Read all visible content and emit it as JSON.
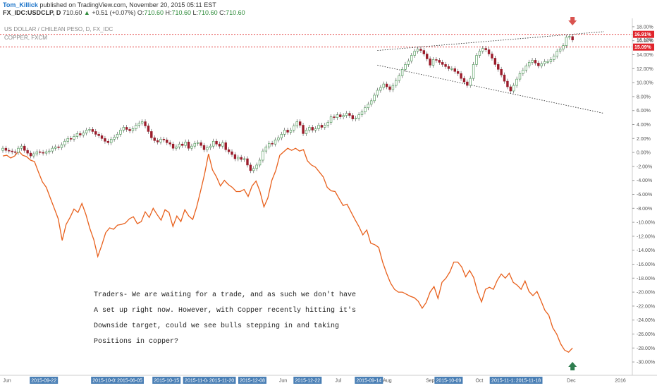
{
  "header": {
    "user": "Tom_Killick",
    "published": "published on TradingView.com, November 20, 2015 05:11 EST",
    "symbol": "FX_IDC:USDCLP, D",
    "last": "710.60",
    "change_arrow": "up-arrow-icon",
    "change": "+0.51 (+0.07%)",
    "o_label": "O:",
    "o": "710.60",
    "h_label": "H:",
    "h": "710.60",
    "l_label": "L:",
    "l": "710.60",
    "c_label": "C:",
    "c": "710.60"
  },
  "legend": {
    "series1": "US DOLLAR / CHILEAN PESO, D, FX_IDC",
    "series2": "COPPER, FXCM"
  },
  "note": {
    "lines": [
      "Traders- We are waiting for a trade, and as such we don't have",
      "A set up right now. However, with Copper recently hitting it's",
      "Downside target, could we see bulls stepping in and taking",
      "Positions in copper?"
    ]
  },
  "colors": {
    "up_candle": "#3f8f4a",
    "down_candle": "#9b1c2b",
    "copper_line": "#e8601c",
    "level_line": "#e03030",
    "badge_red": "#e0242b",
    "arrow_down": "#d9534f",
    "arrow_up": "#2e7d4f",
    "date_box": "#4a7fb5"
  },
  "chart_data": {
    "type": "line",
    "scale": "percent",
    "ylim": [
      -31,
      19
    ],
    "y_ticks": [
      "18.00%",
      "16.00%",
      "14.00%",
      "12.00%",
      "10.00%",
      "8.00%",
      "6.00%",
      "4.00%",
      "2.00%",
      "0.00%",
      "-2.00%",
      "-4.00%",
      "-6.00%",
      "-8.00%",
      "-10.00%",
      "-12.00%",
      "-14.00%",
      "-16.00%",
      "-18.00%",
      "-20.00%",
      "-22.00%",
      "-24.00%",
      "-26.00%",
      "-28.00%",
      "-30.00%"
    ],
    "y_tick_values": [
      18,
      16,
      14,
      12,
      10,
      8,
      6,
      4,
      2,
      0,
      -2,
      -4,
      -6,
      -8,
      -10,
      -12,
      -14,
      -16,
      -18,
      -20,
      -22,
      -24,
      -26,
      -28,
      -30
    ],
    "x_labels": [
      {
        "text": "Jun",
        "pos": 0.0,
        "box": false
      },
      {
        "text": "2015-09-22",
        "pos": 0.06,
        "box": true
      },
      {
        "text": "2015-10-05",
        "pos": 0.16,
        "box": true
      },
      {
        "text": "2015-06-05",
        "pos": 0.2,
        "box": true
      },
      {
        "text": "2015-10-15",
        "pos": 0.26,
        "box": true
      },
      {
        "text": "2015-11-04",
        "pos": 0.31,
        "box": true
      },
      {
        "text": "2015-11-20",
        "pos": 0.35,
        "box": true
      },
      {
        "text": "2015-12-08",
        "pos": 0.4,
        "box": true
      },
      {
        "text": "Jun",
        "pos": 0.45,
        "box": false
      },
      {
        "text": "2015-12-22",
        "pos": 0.49,
        "box": true
      },
      {
        "text": "Jul",
        "pos": 0.54,
        "box": false
      },
      {
        "text": "2015-09-14",
        "pos": 0.59,
        "box": true
      },
      {
        "text": "Aug",
        "pos": 0.62,
        "box": false
      },
      {
        "text": "Sep",
        "pos": 0.69,
        "box": false
      },
      {
        "text": "2015-10-09",
        "pos": 0.72,
        "box": true
      },
      {
        "text": "Oct",
        "pos": 0.77,
        "box": false
      },
      {
        "text": "2015-11-12",
        "pos": 0.81,
        "box": true
      },
      {
        "text": "2015-11-18",
        "pos": 0.85,
        "box": true
      },
      {
        "text": "Dec",
        "pos": 0.92,
        "box": false
      },
      {
        "text": "2016",
        "pos": 1.0,
        "box": false
      }
    ],
    "badges": [
      {
        "label": "16.91%",
        "value": 16.91,
        "style": "red"
      },
      {
        "label": "16.12%",
        "value": 16.12,
        "style": "plain"
      },
      {
        "label": "15.09%",
        "value": 15.09,
        "style": "red"
      }
    ],
    "levels": [
      16.91,
      15.09
    ],
    "trendlines": [
      {
        "from": [
          0.595,
          14.6
        ],
        "to": [
          0.955,
          17.3
        ]
      },
      {
        "from": [
          0.595,
          12.5
        ],
        "to": [
          0.955,
          5.6
        ]
      }
    ],
    "arrows": [
      {
        "kind": "down",
        "x": 0.905,
        "value": 18.8
      },
      {
        "kind": "up",
        "x": 0.905,
        "value": -30.6
      }
    ],
    "series": [
      {
        "style": "candles",
        "x_start": 0.0,
        "x_end": 0.905,
        "values": [
          0.6,
          0.3,
          0.2,
          0.1,
          0.0,
          0.6,
          0.9,
          0.3,
          -0.1,
          -0.5,
          -0.2,
          0.1,
          0.0,
          -0.1,
          0.1,
          0.2,
          0.6,
          0.8,
          0.7,
          1.1,
          1.6,
          2.0,
          1.9,
          2.3,
          2.7,
          2.5,
          2.8,
          3.2,
          3.3,
          3.0,
          2.6,
          2.4,
          2.0,
          1.6,
          1.4,
          1.9,
          2.2,
          2.6,
          3.2,
          3.6,
          3.3,
          3.1,
          3.4,
          3.9,
          4.2,
          4.4,
          3.8,
          3.0,
          2.1,
          1.7,
          1.5,
          1.9,
          1.8,
          1.4,
          1.2,
          0.6,
          0.8,
          1.2,
          1.0,
          1.5,
          0.6,
          0.9,
          1.3,
          1.4,
          1.0,
          0.4,
          0.7,
          0.9,
          1.6,
          1.2,
          0.9,
          1.4,
          0.4,
          0.1,
          -0.3,
          -0.9,
          -0.7,
          -1.0,
          -0.9,
          -1.8,
          -2.6,
          -2.3,
          -1.8,
          -1.1,
          0.2,
          0.8,
          1.3,
          1.2,
          1.8,
          2.1,
          2.6,
          3.2,
          2.9,
          3.2,
          3.8,
          4.4,
          3.9,
          2.7,
          3.2,
          3.6,
          3.2,
          3.4,
          3.9,
          3.6,
          3.9,
          4.3,
          5.1,
          5.0,
          5.4,
          5.1,
          5.3,
          5.6,
          5.3,
          4.8,
          4.9,
          5.4,
          5.8,
          6.4,
          6.9,
          7.4,
          8.2,
          8.9,
          9.3,
          9.8,
          9.4,
          9.0,
          9.6,
          10.3,
          11.0,
          11.9,
          12.6,
          13.1,
          13.9,
          14.5,
          14.8,
          14.6,
          14.1,
          13.4,
          12.5,
          13.3,
          13.2,
          12.9,
          12.6,
          12.3,
          12.0,
          12.0,
          11.6,
          11.3,
          10.6,
          10.1,
          9.6,
          10.6,
          12.6,
          13.9,
          14.5,
          14.9,
          14.7,
          14.1,
          13.5,
          12.6,
          11.9,
          11.1,
          10.2,
          9.4,
          8.8,
          9.6,
          10.5,
          11.3,
          11.8,
          12.4,
          12.9,
          13.2,
          12.8,
          12.4,
          12.7,
          13.0,
          13.0,
          13.3,
          13.8,
          14.5,
          14.8,
          15.3,
          16.5,
          16.6,
          16.1
        ]
      },
      {
        "style": "line",
        "name": "COPPER, FXCM",
        "x_start": 0.0,
        "x_end": 0.905,
        "values": [
          -0.5,
          -0.4,
          -0.8,
          -0.5,
          0.2,
          -0.4,
          -0.6,
          -1.1,
          -1.3,
          -2.8,
          -4.2,
          -5.0,
          -6.5,
          -8.0,
          -9.5,
          -12.6,
          -10.3,
          -9.3,
          -8.1,
          -8.6,
          -7.3,
          -8.9,
          -10.9,
          -12.5,
          -14.9,
          -13.3,
          -11.5,
          -10.8,
          -11.0,
          -10.4,
          -10.3,
          -10.1,
          -9.5,
          -9.2,
          -10.2,
          -9.9,
          -8.5,
          -9.3,
          -8.0,
          -8.9,
          -9.7,
          -8.2,
          -8.6,
          -10.6,
          -9.1,
          -9.9,
          -8.2,
          -9.1,
          -9.6,
          -7.8,
          -5.5,
          -3.1,
          -0.2,
          -2.5,
          -3.5,
          -4.8,
          -4.0,
          -4.6,
          -5.0,
          -5.6,
          -5.6,
          -5.3,
          -6.3,
          -4.8,
          -4.1,
          -5.6,
          -7.8,
          -6.5,
          -4.0,
          -2.6,
          -0.4,
          0.1,
          0.6,
          0.3,
          0.6,
          0.2,
          0.4,
          -1.2,
          -1.8,
          -2.1,
          -2.8,
          -3.5,
          -5.0,
          -5.5,
          -5.6,
          -6.6,
          -7.6,
          -7.4,
          -8.5,
          -9.6,
          -10.6,
          -11.8,
          -11.1,
          -13.0,
          -13.2,
          -13.6,
          -15.7,
          -17.3,
          -18.7,
          -19.6,
          -20.0,
          -20.0,
          -20.3,
          -20.6,
          -20.8,
          -21.3,
          -22.3,
          -21.5,
          -20.0,
          -19.2,
          -20.9,
          -18.6,
          -18.0,
          -17.1,
          -15.7,
          -15.7,
          -16.4,
          -17.8,
          -16.9,
          -17.9,
          -20.0,
          -21.4,
          -19.6,
          -19.3,
          -19.6,
          -18.3,
          -17.4,
          -18.0,
          -17.3,
          -18.6,
          -19.0,
          -19.6,
          -18.4,
          -19.9,
          -20.5,
          -19.9,
          -21.2,
          -22.6,
          -23.3,
          -25.1,
          -26.0,
          -27.4,
          -28.3,
          -28.6,
          -28.0
        ]
      }
    ]
  }
}
